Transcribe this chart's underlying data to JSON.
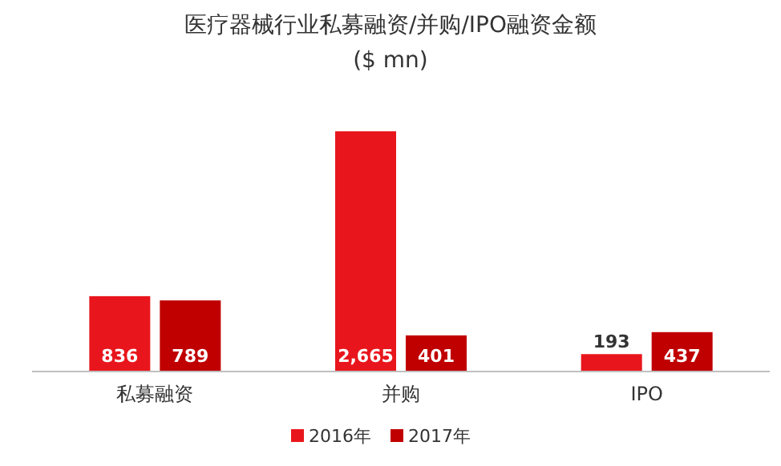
{
  "chart_data": {
    "type": "bar",
    "title": "医疗器械行业私募融资/并购/IPO融资金额",
    "subtitle": "($ mn)",
    "categories": [
      "私募融资",
      "并购",
      "IPO"
    ],
    "series": [
      {
        "name": "2016年",
        "color": "#e8161c",
        "values": [
          836,
          2665,
          193
        ],
        "value_labels": [
          "836",
          "2,665",
          "193"
        ]
      },
      {
        "name": "2017年",
        "color": "#c00000",
        "values": [
          789,
          401,
          437
        ],
        "value_labels": [
          "789",
          "401",
          "437"
        ]
      }
    ],
    "legend": "bottom"
  }
}
